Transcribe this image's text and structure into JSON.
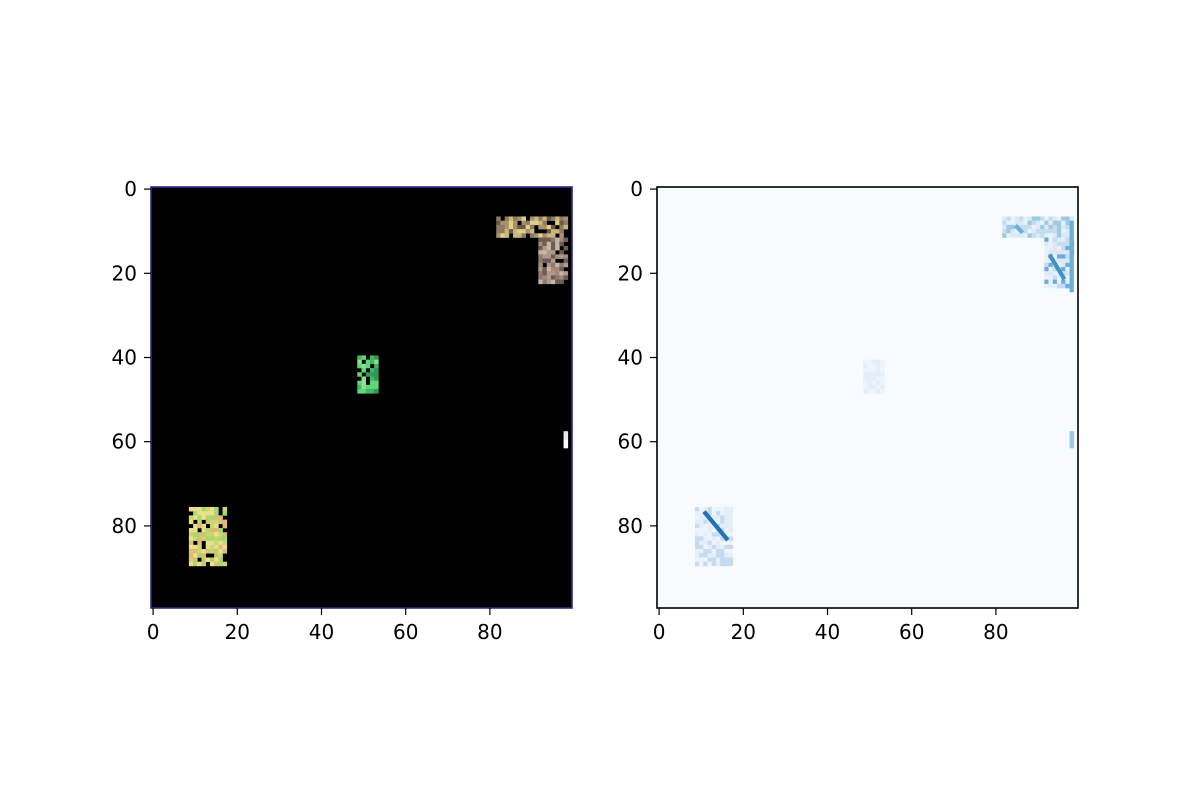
{
  "chart_data": [
    {
      "type": "heatmap",
      "title": "",
      "xlabel": "",
      "ylabel": "",
      "xlim": [
        0,
        99
      ],
      "ylim": [
        99,
        0
      ],
      "xticks": [
        0,
        20,
        40,
        60,
        80
      ],
      "yticks": [
        0,
        20,
        40,
        60,
        80
      ],
      "grid": false,
      "background_color": "#000000",
      "frame_color": "#2b2b8a",
      "patches": [
        {
          "x_range": [
            82,
            99
          ],
          "y_range": [
            7,
            12
          ],
          "colors": [
            "#c9b87a",
            "#a8926a",
            "#8f7a63",
            "#e0d08c",
            "#6b5a4a"
          ]
        },
        {
          "x_range": [
            92,
            99
          ],
          "y_range": [
            12,
            23
          ],
          "colors": [
            "#8f7a70",
            "#b09a8c",
            "#6e5c55",
            "#c8b5a5",
            "#a38a7c"
          ]
        },
        {
          "x_range": [
            49,
            54
          ],
          "y_range": [
            40,
            49
          ],
          "colors": [
            "#5fd67a",
            "#3fb866",
            "#8ae08c",
            "#2f9a55"
          ]
        },
        {
          "x_range": [
            98,
            99
          ],
          "y_range": [
            58,
            62
          ],
          "colors": [
            "#e6e6e6",
            "#ffffff"
          ]
        },
        {
          "x_range": [
            9,
            18
          ],
          "y_range": [
            76,
            90
          ],
          "colors": [
            "#e8e08a",
            "#c8d870",
            "#f0e08a",
            "#d8c07a",
            "#a8d870",
            "#e0b87a"
          ]
        }
      ]
    },
    {
      "type": "heatmap",
      "title": "",
      "xlabel": "",
      "ylabel": "",
      "xlim": [
        0,
        99
      ],
      "ylim": [
        99,
        0
      ],
      "xticks": [
        0,
        20,
        40,
        60,
        80
      ],
      "yticks": [
        0,
        20,
        40,
        60,
        80
      ],
      "grid": false,
      "background_color": "#f7fbff",
      "colormap": "Blues",
      "patches": [
        {
          "x_range": [
            82,
            99
          ],
          "y_range": [
            7,
            12
          ],
          "colors": [
            "#dbe9f6",
            "#c6dbef",
            "#e8f1fa",
            "#9ecae1"
          ]
        },
        {
          "x_range": [
            92,
            99
          ],
          "y_range": [
            12,
            24
          ],
          "colors": [
            "#dbe9f6",
            "#c6dbef",
            "#6baed6",
            "#e8f1fa"
          ]
        },
        {
          "x_range": [
            49,
            54
          ],
          "y_range": [
            41,
            49
          ],
          "colors": [
            "#eef4fb",
            "#e3eef8"
          ]
        },
        {
          "x_range": [
            98,
            99
          ],
          "y_range": [
            58,
            62
          ],
          "colors": [
            "#9ecae1"
          ]
        },
        {
          "x_range": [
            9,
            18
          ],
          "y_range": [
            76,
            90
          ],
          "colors": [
            "#e3eef8",
            "#c6dbef",
            "#eef4fb"
          ]
        }
      ],
      "lines": [
        {
          "points": [
            [
              11,
              77
            ],
            [
              16,
              83
            ]
          ],
          "color": "#2171b5"
        },
        {
          "points": [
            [
              93,
              16
            ],
            [
              96,
              21
            ]
          ],
          "color": "#4292c6"
        },
        {
          "points": [
            [
              98,
              8
            ],
            [
              98,
              24
            ]
          ],
          "color": "#6baed6"
        },
        {
          "points": [
            [
              85,
              9
            ],
            [
              86,
              10
            ]
          ],
          "color": "#6baed6"
        }
      ]
    }
  ]
}
